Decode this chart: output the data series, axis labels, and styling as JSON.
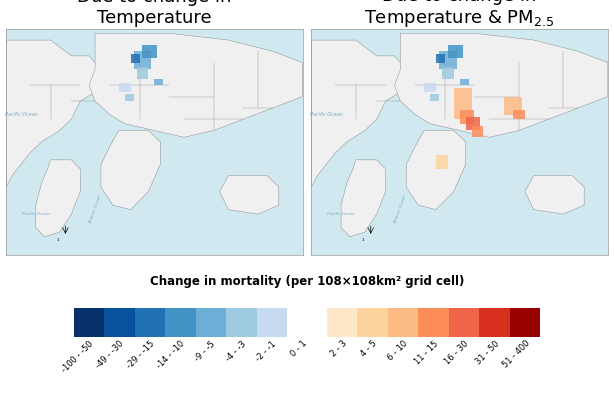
{
  "title_left": "Due to change in\nTemperature",
  "title_right": "Due to change in\nTemperature & PM",
  "pm_subscript": "2.5",
  "colorbar_label": "Change in mortality (per 108×108km² grid cell)",
  "bin_labels": [
    "-100 - -50",
    "-49 - -30",
    "-29 - -15",
    "-14 - -10",
    "-9 - -5",
    "-4 - -3",
    "-2 - -1",
    "0 - 1",
    "2 - 3",
    "4 - 5",
    "6 - 10",
    "11 - 15",
    "16 - 30",
    "31 - 50",
    "51 - 400"
  ],
  "bin_colors": [
    "#08306b",
    "#08519c",
    "#2171b5",
    "#4292c6",
    "#6baed6",
    "#9ecae1",
    "#c6dbef",
    "#ffffff",
    "#fee8c8",
    "#fdd49e",
    "#fdbb84",
    "#fc8d59",
    "#ef6548",
    "#d7301f",
    "#990000"
  ],
  "map_bg_color": "#d0e8f0",
  "country_border_color": "#808080",
  "country_fill_color": "#f0f0f0",
  "ocean_label_color": "#7aacbf",
  "fig_bg_color": "#ffffff",
  "title_fontsize": 13,
  "label_fontsize": 7.5,
  "colorbar_label_fontsize": 8.5
}
